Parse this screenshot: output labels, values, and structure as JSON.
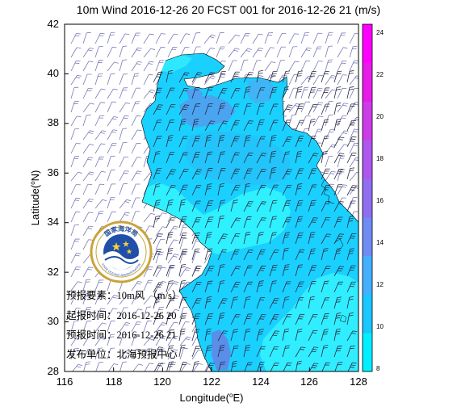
{
  "title": "10m Wind 2016-12-26 20 FCST 001 for 2016-12-26 21 (m/s)",
  "x_axis": {
    "label_main": "Longitude(",
    "label_sup": "o",
    "label_end": "E)",
    "ticks": [
      "116",
      "118",
      "120",
      "122",
      "124",
      "126",
      "128"
    ]
  },
  "y_axis": {
    "label_main": "Latitude(",
    "label_sup": "o",
    "label_end": "N)",
    "ticks": [
      "28",
      "30",
      "32",
      "34",
      "36",
      "38",
      "40",
      "42"
    ]
  },
  "colorbar": {
    "ticks": [
      "8",
      "10",
      "12",
      "14",
      "16",
      "18",
      "20",
      "22",
      "24"
    ],
    "colors": [
      "#00f0ff",
      "#1ac8ff",
      "#45b0ff",
      "#6f8cf2",
      "#8f6ef0",
      "#ae56ee",
      "#cc3ce8",
      "#e81cea",
      "#ff00ff"
    ]
  },
  "logo": {
    "top_text": "国家海洋局",
    "bottom_text": "STATE OCEANIC ADMINISTRATION"
  },
  "info": {
    "element": "预报要素：10m风 （m/s）",
    "start_time": "起报时间：2016-12-26 20",
    "forecast_time": "预报时间：2016-12-26 21",
    "publisher": "发布单位：北海预报中心"
  },
  "chart_data": {
    "type": "map",
    "title": "10m Wind 2016-12-26 20 FCST 001 for 2016-12-26 21 (m/s)",
    "xlabel": "Longitude(oE)",
    "ylabel": "Latitude(oN)",
    "xlim": [
      116,
      128
    ],
    "ylim": [
      28,
      42
    ],
    "colorbar_range": [
      8,
      24
    ]
  }
}
